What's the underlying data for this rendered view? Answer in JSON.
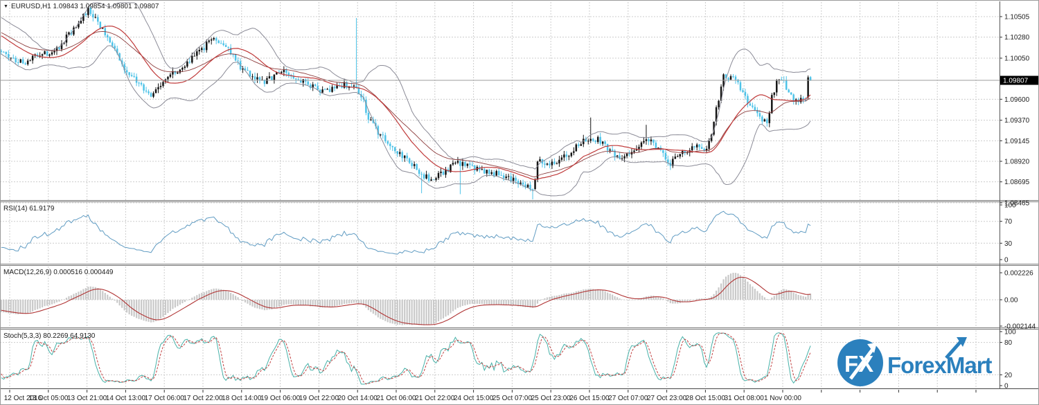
{
  "colors": {
    "bull": "#141414",
    "bear": "#4ec3e8",
    "band": "#8a8a96",
    "band_mid": "#c03a3a",
    "ma_dark": "#8b3a3a",
    "rsi_line": "#5f9bc2",
    "macd_hist": "#c9c9c9",
    "macd_signal": "#b03434",
    "stoch_k": "#46b1a8",
    "stoch_d": "#c04040",
    "grid": "#cccccc",
    "bid_line": "#9b9b9b",
    "axis_text": "#1c1c1c",
    "tag_bg": "#000000",
    "tag_text": "#ffffff",
    "border": "#777777",
    "logo_blue": "#2b80bd"
  },
  "icons": {
    "dropdown": "▼"
  },
  "logo": {
    "fx": "FX",
    "name": "ForexMart"
  },
  "chart_data": {
    "type": "candlestick",
    "symbol": "EURUSD",
    "timeframe": "H1",
    "symbol_title": "EURUSD,H1 1.09843 1.09854 1.09801 1.09807",
    "last_bar": {
      "open": 1.09843,
      "high": 1.09854,
      "low": 1.09801,
      "close": 1.09807
    },
    "current_price": 1.09807,
    "current_price_label": "1.09807",
    "price_axis_labels": [
      "1.10505",
      "1.10280",
      "1.10050",
      "1.09600",
      "1.09370",
      "1.09145",
      "1.08920",
      "1.08695",
      "1.08465"
    ],
    "price_axis_range": [
      1.08465,
      1.10505
    ],
    "grid": true,
    "time_labels": [
      "12 Oct 2016",
      "13 Oct 05:00",
      "13 Oct 21:00",
      "14 Oct 13:00",
      "17 Oct 06:00",
      "17 Oct 22:00",
      "18 Oct 14:00",
      "19 Oct 06:00",
      "19 Oct 22:00",
      "20 Oct 14:00",
      "21 Oct 06:00",
      "21 Oct 22:00",
      "24 Oct 15:00",
      "25 Oct 07:00",
      "25 Oct 23:00",
      "26 Oct 15:00",
      "27 Oct 07:00",
      "27 Oct 23:00",
      "28 Oct 15:00",
      "31 Oct 08:00",
      "1 Nov 00:00"
    ],
    "bars_total": 336,
    "price_keyframes": [
      [
        0,
        1.1013
      ],
      [
        2,
        1.1007
      ],
      [
        6,
        1.1003
      ],
      [
        10,
        1.0999
      ],
      [
        14,
        1.1008
      ],
      [
        17,
        1.1012
      ],
      [
        20,
        1.1007
      ],
      [
        24,
        1.1018
      ],
      [
        29,
        1.1034
      ],
      [
        33,
        1.1047
      ],
      [
        36,
        1.1057
      ],
      [
        39,
        1.1049
      ],
      [
        43,
        1.1031
      ],
      [
        47,
        1.1012
      ],
      [
        52,
        1.0991
      ],
      [
        58,
        1.0974
      ],
      [
        62,
        1.0965
      ],
      [
        66,
        1.0976
      ],
      [
        70,
        1.0986
      ],
      [
        75,
        1.0996
      ],
      [
        79,
        1.1004
      ],
      [
        83,
        1.1014
      ],
      [
        86,
        1.1022
      ],
      [
        89,
        1.1026
      ],
      [
        91,
        1.1022
      ],
      [
        95,
        1.1012
      ],
      [
        99,
        1.0996
      ],
      [
        104,
        1.0986
      ],
      [
        109,
        1.0979
      ],
      [
        114,
        1.0987
      ],
      [
        118,
        1.0991
      ],
      [
        122,
        1.0982
      ],
      [
        127,
        1.0976
      ],
      [
        131,
        1.0971
      ],
      [
        135,
        1.0969
      ],
      [
        138,
        1.0973
      ],
      [
        142,
        1.0976
      ],
      [
        147,
        1.0973
      ],
      [
        150,
        1.0956
      ],
      [
        152,
        1.0938
      ],
      [
        157,
        1.0921
      ],
      [
        161,
        1.091
      ],
      [
        165,
        1.0899
      ],
      [
        170,
        1.089
      ],
      [
        174,
        1.0878
      ],
      [
        178,
        1.0872
      ],
      [
        184,
        1.0881
      ],
      [
        188,
        1.0891
      ],
      [
        193,
        1.0886
      ],
      [
        197,
        1.0883
      ],
      [
        201,
        1.0881
      ],
      [
        207,
        1.0877
      ],
      [
        213,
        1.0872
      ],
      [
        217,
        1.0866
      ],
      [
        220,
        1.0858
      ],
      [
        222,
        1.0892
      ],
      [
        227,
        1.089
      ],
      [
        233,
        1.0896
      ],
      [
        239,
        1.0911
      ],
      [
        244,
        1.0917
      ],
      [
        247,
        1.0916
      ],
      [
        250,
        1.091
      ],
      [
        255,
        1.0896
      ],
      [
        259,
        1.0899
      ],
      [
        264,
        1.0906
      ],
      [
        267,
        1.0919
      ],
      [
        271,
        1.0907
      ],
      [
        277,
        1.089
      ],
      [
        282,
        1.0902
      ],
      [
        287,
        1.0908
      ],
      [
        291,
        1.0905
      ],
      [
        293,
        1.0912
      ],
      [
        296,
        1.095
      ],
      [
        299,
        1.0985
      ],
      [
        304,
        1.0983
      ],
      [
        308,
        1.0962
      ],
      [
        312,
        1.0948
      ],
      [
        315,
        1.0938
      ],
      [
        317,
        1.0934
      ],
      [
        319,
        1.0962
      ],
      [
        321,
        1.0978
      ],
      [
        323,
        1.0984
      ],
      [
        326,
        1.0965
      ],
      [
        329,
        1.0958
      ],
      [
        331,
        1.096
      ],
      [
        333,
        1.0962
      ],
      [
        334,
        1.0975
      ],
      [
        335,
        1.0981
      ]
    ],
    "wick_spikes": [
      {
        "bar": 36,
        "high": 1.1062
      },
      {
        "bar": 147,
        "high": 1.1049
      },
      {
        "bar": 174,
        "low": 1.0857
      },
      {
        "bar": 190,
        "low": 1.0856
      },
      {
        "bar": 220,
        "low": 1.0849
      },
      {
        "bar": 244,
        "high": 1.094
      },
      {
        "bar": 267,
        "high": 1.0932
      },
      {
        "bar": 317,
        "low": 1.093
      }
    ],
    "bar_overrides": [
      {
        "bar": 334,
        "open": 1.0962,
        "high": 1.0986,
        "low": 1.096,
        "close": 1.0984
      },
      {
        "bar": 335,
        "open": 1.09843,
        "high": 1.09854,
        "low": 1.09801,
        "close": 1.09807
      }
    ],
    "indicators": {
      "bollinger": {
        "period": 20,
        "deviation": 2
      },
      "rsi": {
        "label": "RSI(14) 61.9179",
        "period": 14,
        "axis": [
          100,
          70,
          30,
          0
        ],
        "last": 61.9179
      },
      "macd": {
        "label": "MACD(12,26,9) 0.000516 0.000449",
        "axis": [
          "0.002226",
          "0.00",
          "-0.002144"
        ],
        "last": [
          0.000516,
          0.000449
        ]
      },
      "stoch": {
        "label": "Stoch(5,3,3) 80.2269 64.9130",
        "axis": [
          100,
          80,
          20,
          0
        ],
        "last": [
          80.2269,
          64.913
        ]
      }
    }
  }
}
